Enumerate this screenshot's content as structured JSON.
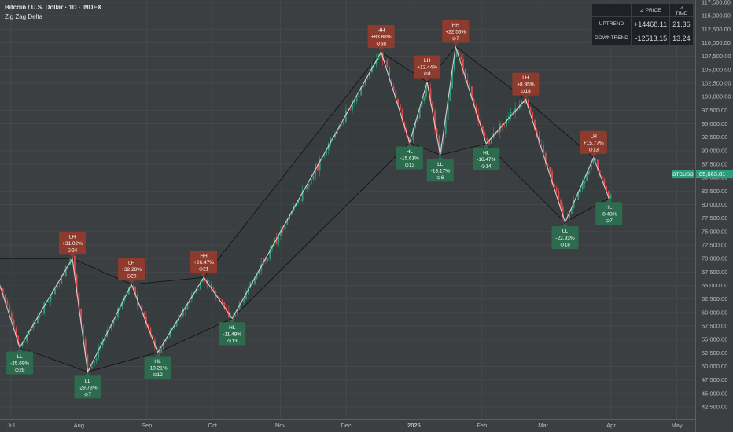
{
  "header": {
    "title": "Bitcoin / U.S. Dollar · 1D · INDEX",
    "indicator": "Zig Zag Delta"
  },
  "stats_table": {
    "col_price": "⊿ PRICE",
    "col_time": "⊿ TIME",
    "rows": [
      {
        "label": "UPTREND",
        "price": "+14468.11",
        "time": "21.36"
      },
      {
        "label": "DOWNTREND",
        "price": "-12513.15",
        "time": "13.24"
      }
    ]
  },
  "colors": {
    "background": "#3b3f42",
    "up": "#2e9e7a",
    "down": "#e04b4b",
    "high_label": "#8e3b2e",
    "low_label": "#2c6b4d",
    "zigzag": "#e6e6e6"
  },
  "chart_data": {
    "type": "candlestick",
    "symbol": "BTCUSD",
    "last_price": "85,663.81",
    "last_price_value": 85663.81,
    "ylim": [
      40000,
      118000
    ],
    "y_ticks": [
      "42,500.00",
      "45,000.00",
      "47,500.00",
      "50,000.00",
      "52,500.00",
      "55,000.00",
      "57,500.00",
      "60,000.00",
      "62,500.00",
      "65,000.00",
      "67,500.00",
      "70,000.00",
      "72,500.00",
      "75,000.00",
      "77,500.00",
      "80,000.00",
      "82,500.00",
      "85,000.00",
      "87,500.00",
      "90,000.00",
      "92,500.00",
      "95,000.00",
      "97,500.00",
      "100,000.00",
      "102,500.00",
      "105,000.00",
      "107,500.00",
      "110,000.00",
      "112,500.00",
      "115,000.00",
      "117,500.00"
    ],
    "y_tick_values": [
      42500,
      45000,
      47500,
      50000,
      52500,
      55000,
      57500,
      60000,
      62500,
      65000,
      67500,
      70000,
      72500,
      75000,
      77500,
      80000,
      82500,
      85000,
      87500,
      90000,
      92500,
      95000,
      97500,
      100000,
      102500,
      105000,
      107500,
      110000,
      112500,
      115000,
      117500
    ],
    "x_range": [
      "2024-06-26",
      "2025-05-06"
    ],
    "x_ticks": [
      {
        "label": "Jul",
        "date": "2024-07-01"
      },
      {
        "label": "Aug",
        "date": "2024-08-01"
      },
      {
        "label": "Sep",
        "date": "2024-09-01"
      },
      {
        "label": "Oct",
        "date": "2024-10-01"
      },
      {
        "label": "Nov",
        "date": "2024-11-01"
      },
      {
        "label": "Dec",
        "date": "2024-12-01"
      },
      {
        "label": "2025",
        "date": "2025-01-01"
      },
      {
        "label": "Feb",
        "date": "2025-02-01"
      },
      {
        "label": "Mar",
        "date": "2025-03-01"
      },
      {
        "label": "Apr",
        "date": "2025-04-01"
      },
      {
        "label": "May",
        "date": "2025-05-01"
      }
    ],
    "pivots": [
      {
        "date": "2024-06-22",
        "price": 70000
      },
      {
        "date": "2024-07-05",
        "price": 53500,
        "type": "LL",
        "pct": "-25.69%",
        "bars": "⊙28"
      },
      {
        "date": "2024-07-29",
        "price": 70000,
        "type": "LH",
        "pct": "+31.02%",
        "bars": "⊙24"
      },
      {
        "date": "2024-08-05",
        "price": 49000,
        "type": "LL",
        "pct": "-29.73%",
        "bars": "⊙7"
      },
      {
        "date": "2024-08-25",
        "price": 65200,
        "type": "LH",
        "pct": "+32.28%",
        "bars": "⊙20"
      },
      {
        "date": "2024-09-06",
        "price": 52600,
        "type": "HL",
        "pct": "-19.21%",
        "bars": "⊙12"
      },
      {
        "date": "2024-09-27",
        "price": 66500,
        "type": "HH",
        "pct": "+26.47%",
        "bars": "⊙21"
      },
      {
        "date": "2024-10-10",
        "price": 58900,
        "type": "HL",
        "pct": "-11.48%",
        "bars": "⊙13"
      },
      {
        "date": "2024-12-17",
        "price": 108300,
        "type": "HH",
        "pct": "+83.88%",
        "bars": "⊙68"
      },
      {
        "date": "2024-12-30",
        "price": 91500,
        "type": "HL",
        "pct": "-15.61%",
        "bars": "⊙13"
      },
      {
        "date": "2025-01-07",
        "price": 102700,
        "type": "LH",
        "pct": "+12.44%",
        "bars": "⊙8"
      },
      {
        "date": "2025-01-13",
        "price": 89200,
        "type": "LL",
        "pct": "-13.17%",
        "bars": "⊙6"
      },
      {
        "date": "2025-01-20",
        "price": 109300,
        "type": "HH",
        "pct": "+22.56%",
        "bars": "⊙7"
      },
      {
        "date": "2025-02-03",
        "price": 91300,
        "type": "HL",
        "pct": "-16.47%",
        "bars": "⊙14"
      },
      {
        "date": "2025-02-21",
        "price": 99500,
        "type": "LH",
        "pct": "+8.95%",
        "bars": "⊙18"
      },
      {
        "date": "2025-03-11",
        "price": 76700,
        "type": "LL",
        "pct": "-22.93%",
        "bars": "⊙18"
      },
      {
        "date": "2025-03-24",
        "price": 88700,
        "type": "LH",
        "pct": "+15.77%",
        "bars": "⊙13"
      },
      {
        "date": "2025-03-31",
        "price": 81200,
        "type": "HL",
        "pct": "-8.43%",
        "bars": "⊙7"
      }
    ]
  }
}
